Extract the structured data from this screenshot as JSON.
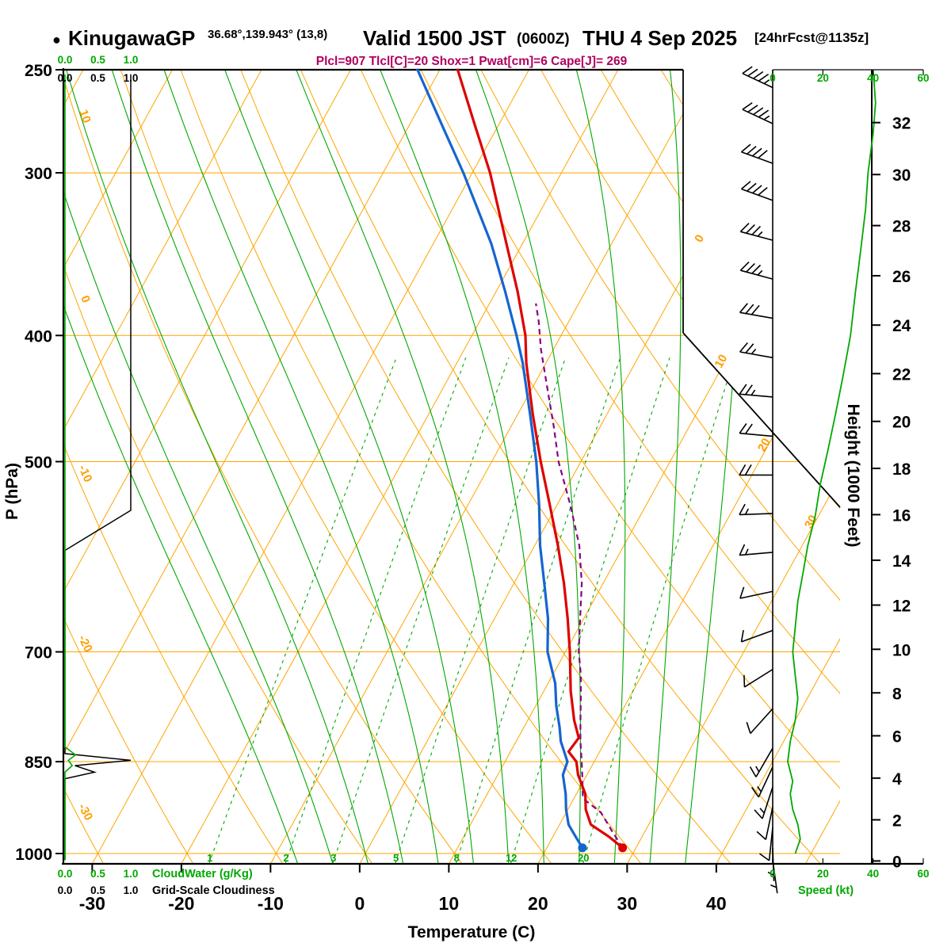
{
  "title": {
    "bullet": "●",
    "station": "KinugawaGP",
    "coords": "36.68°,139.943° (13,8)",
    "valid": "Valid 1500 JST",
    "valid_z": "(0600Z)",
    "valid_date": "THU 4 Sep 2025",
    "fcst": "[24hrFcst@1135z]"
  },
  "params_line": "Plcl=907 Tlcl[C]=20 Shox=1 Pwat[cm]=6 Cape[J]= 269",
  "chart_data": {
    "type": "line",
    "chart_kind": "skew-t-log-p-sounding",
    "axes": {
      "pressure": {
        "label": "P (hPa)",
        "ticks": [
          250,
          300,
          400,
          500,
          700,
          850,
          1000
        ],
        "range": [
          250,
          1050
        ],
        "scale": "log"
      },
      "temperature": {
        "label": "Temperature (C)",
        "ticks": [
          -30,
          -20,
          -10,
          0,
          10,
          20,
          30,
          40
        ],
        "unit": "C"
      },
      "height": {
        "label": "Height (1000 Feet)",
        "ticks": [
          0,
          2,
          4,
          6,
          8,
          10,
          12,
          14,
          16,
          18,
          20,
          22,
          24,
          26,
          28,
          30,
          32
        ],
        "unit": "1000 ft"
      },
      "speed": {
        "label": "Speed (kt)",
        "ticks": [
          0,
          20,
          40,
          60
        ],
        "unit": "kt"
      },
      "cloudwater": {
        "label": "CloudWater (g/Kg)",
        "ticks": [
          "0.0",
          "0.5",
          "1.0"
        ]
      },
      "cloudiness": {
        "label": "Grid-Scale Cloudiness",
        "ticks": [
          "0.0",
          "0.5",
          "1.0"
        ]
      }
    },
    "grid": {
      "isotherms_c": [
        -80,
        -70,
        -60,
        -50,
        -40,
        -30,
        -20,
        -10,
        0,
        10,
        20,
        30,
        40,
        50
      ],
      "isotherm_labels": [
        [
          0,
          338
        ],
        [
          10,
          420
        ],
        [
          20,
          487
        ],
        [
          30,
          558
        ]
      ],
      "dry_adiabats_c": [
        -30,
        -20,
        -10,
        0,
        10,
        20,
        30,
        40,
        50,
        60,
        70,
        80,
        90,
        100,
        110,
        120
      ],
      "dry_adiabat_labels": [
        10,
        0,
        -10,
        -20,
        -30
      ],
      "moist_adiabats_c": [
        -8,
        -4,
        0,
        4,
        8,
        12,
        16,
        20,
        24,
        28,
        32,
        36
      ],
      "mixing_ratio_gkg": [
        1,
        2,
        3,
        5,
        8,
        12,
        20
      ]
    },
    "series": [
      {
        "name": "temperature",
        "color": "#DD0000",
        "units": [
          "hPa",
          "C"
        ],
        "points": [
          [
            990,
            28.5
          ],
          [
            970,
            26.2
          ],
          [
            950,
            23.5
          ],
          [
            925,
            22.0
          ],
          [
            900,
            21.0
          ],
          [
            870,
            19.0
          ],
          [
            850,
            18.0
          ],
          [
            835,
            16.5
          ],
          [
            815,
            16.8
          ],
          [
            790,
            15.2
          ],
          [
            750,
            13.0
          ],
          [
            700,
            10.5
          ],
          [
            660,
            8.2
          ],
          [
            620,
            5.6
          ],
          [
            580,
            2.6
          ],
          [
            540,
            -0.8
          ],
          [
            500,
            -4.5
          ],
          [
            460,
            -8.3
          ],
          [
            420,
            -12.2
          ],
          [
            400,
            -14.0
          ],
          [
            370,
            -17.6
          ],
          [
            340,
            -21.8
          ],
          [
            300,
            -28.0
          ],
          [
            275,
            -32.8
          ],
          [
            250,
            -38.0
          ]
        ]
      },
      {
        "name": "dewpoint",
        "color": "#1565D0",
        "units": [
          "hPa",
          "C"
        ],
        "points": [
          [
            990,
            24.0
          ],
          [
            970,
            22.5
          ],
          [
            950,
            21.0
          ],
          [
            925,
            19.8
          ],
          [
            900,
            18.8
          ],
          [
            870,
            17.3
          ],
          [
            850,
            17.0
          ],
          [
            820,
            15.0
          ],
          [
            800,
            14.0
          ],
          [
            770,
            12.3
          ],
          [
            740,
            10.8
          ],
          [
            700,
            8.0
          ],
          [
            660,
            6.0
          ],
          [
            620,
            3.4
          ],
          [
            580,
            0.6
          ],
          [
            540,
            -2.0
          ],
          [
            500,
            -5.0
          ],
          [
            460,
            -8.6
          ],
          [
            420,
            -12.6
          ],
          [
            400,
            -15.0
          ],
          [
            370,
            -19.0
          ],
          [
            340,
            -23.5
          ],
          [
            300,
            -31.0
          ],
          [
            275,
            -36.5
          ],
          [
            250,
            -42.5
          ]
        ]
      },
      {
        "name": "parcel",
        "color": "#880088",
        "units": [
          "hPa",
          "C"
        ],
        "points": [
          [
            990,
            28.5
          ],
          [
            960,
            26.2
          ],
          [
            930,
            23.9
          ],
          [
            907,
            21.0
          ],
          [
            880,
            19.9
          ],
          [
            850,
            18.6
          ],
          [
            820,
            17.2
          ],
          [
            790,
            15.9
          ],
          [
            760,
            14.6
          ],
          [
            730,
            13.2
          ],
          [
            700,
            11.5
          ],
          [
            660,
            9.6
          ],
          [
            620,
            7.6
          ],
          [
            580,
            5.0
          ],
          [
            540,
            1.5
          ],
          [
            500,
            -2.5
          ],
          [
            470,
            -5.2
          ],
          [
            440,
            -8.2
          ],
          [
            410,
            -11.4
          ],
          [
            390,
            -13.4
          ],
          [
            378,
            -14.8
          ]
        ]
      },
      {
        "name": "wind_speed",
        "color": "#00A800",
        "units": [
          "hPa",
          "kt"
        ],
        "points": [
          [
            250,
            40
          ],
          [
            265,
            41
          ],
          [
            280,
            40
          ],
          [
            300,
            38
          ],
          [
            320,
            37
          ],
          [
            345,
            35
          ],
          [
            370,
            33
          ],
          [
            400,
            31
          ],
          [
            430,
            28
          ],
          [
            460,
            25
          ],
          [
            490,
            22
          ],
          [
            520,
            19
          ],
          [
            550,
            17
          ],
          [
            580,
            14
          ],
          [
            610,
            12
          ],
          [
            640,
            10
          ],
          [
            670,
            9
          ],
          [
            700,
            8
          ],
          [
            730,
            9
          ],
          [
            760,
            10
          ],
          [
            790,
            9
          ],
          [
            820,
            7
          ],
          [
            850,
            6
          ],
          [
            880,
            8
          ],
          [
            900,
            7
          ],
          [
            925,
            8
          ],
          [
            950,
            10
          ],
          [
            975,
            11
          ],
          [
            1000,
            9
          ]
        ]
      },
      {
        "name": "grid_scale_cloudiness",
        "color": "#000000",
        "units": [
          "hPa",
          "fraction"
        ],
        "points": [
          [
            252,
            1.0
          ],
          [
            545,
            1.0
          ],
          [
            585,
            0.0
          ],
          [
            838,
            0.0
          ],
          [
            848,
            1.0
          ],
          [
            856,
            0.15
          ],
          [
            866,
            0.45
          ],
          [
            876,
            0.0
          ],
          [
            1012,
            0.0
          ]
        ]
      },
      {
        "name": "cloud_water",
        "color": "#00A800",
        "units": [
          "hPa",
          "g/kg"
        ],
        "points": [
          [
            252,
            0
          ],
          [
            828,
            0
          ],
          [
            840,
            0.16
          ],
          [
            848,
            0.05
          ],
          [
            856,
            0.11
          ],
          [
            866,
            0
          ],
          [
            1012,
            0
          ]
        ]
      }
    ],
    "surface_dots": {
      "temperature": [
        990,
        28.5
      ],
      "dewpoint": [
        990,
        24.0
      ]
    },
    "wind_barbs": [
      [
        258,
        295,
        45
      ],
      [
        275,
        295,
        45
      ],
      [
        295,
        290,
        40
      ],
      [
        315,
        290,
        40
      ],
      [
        338,
        285,
        35
      ],
      [
        362,
        285,
        35
      ],
      [
        388,
        280,
        30
      ],
      [
        416,
        280,
        25
      ],
      [
        446,
        275,
        25
      ],
      [
        478,
        275,
        20
      ],
      [
        512,
        270,
        20
      ],
      [
        548,
        268,
        15
      ],
      [
        587,
        265,
        15
      ],
      [
        629,
        258,
        10
      ],
      [
        674,
        250,
        10
      ],
      [
        722,
        238,
        10
      ],
      [
        774,
        222,
        12
      ],
      [
        830,
        210,
        15
      ],
      [
        858,
        205,
        15
      ],
      [
        889,
        198,
        15
      ],
      [
        921,
        192,
        12
      ],
      [
        955,
        186,
        10
      ],
      [
        990,
        178,
        8
      ],
      [
        1012,
        172,
        6
      ]
    ]
  },
  "colors": {
    "grid_orange": "#FFA500",
    "green": "#00A800",
    "temp_red": "#DD0000",
    "dew_blue": "#1565D0",
    "parcel_purple": "#880088",
    "params_magenta": "#B00060",
    "black": "#000000"
  }
}
